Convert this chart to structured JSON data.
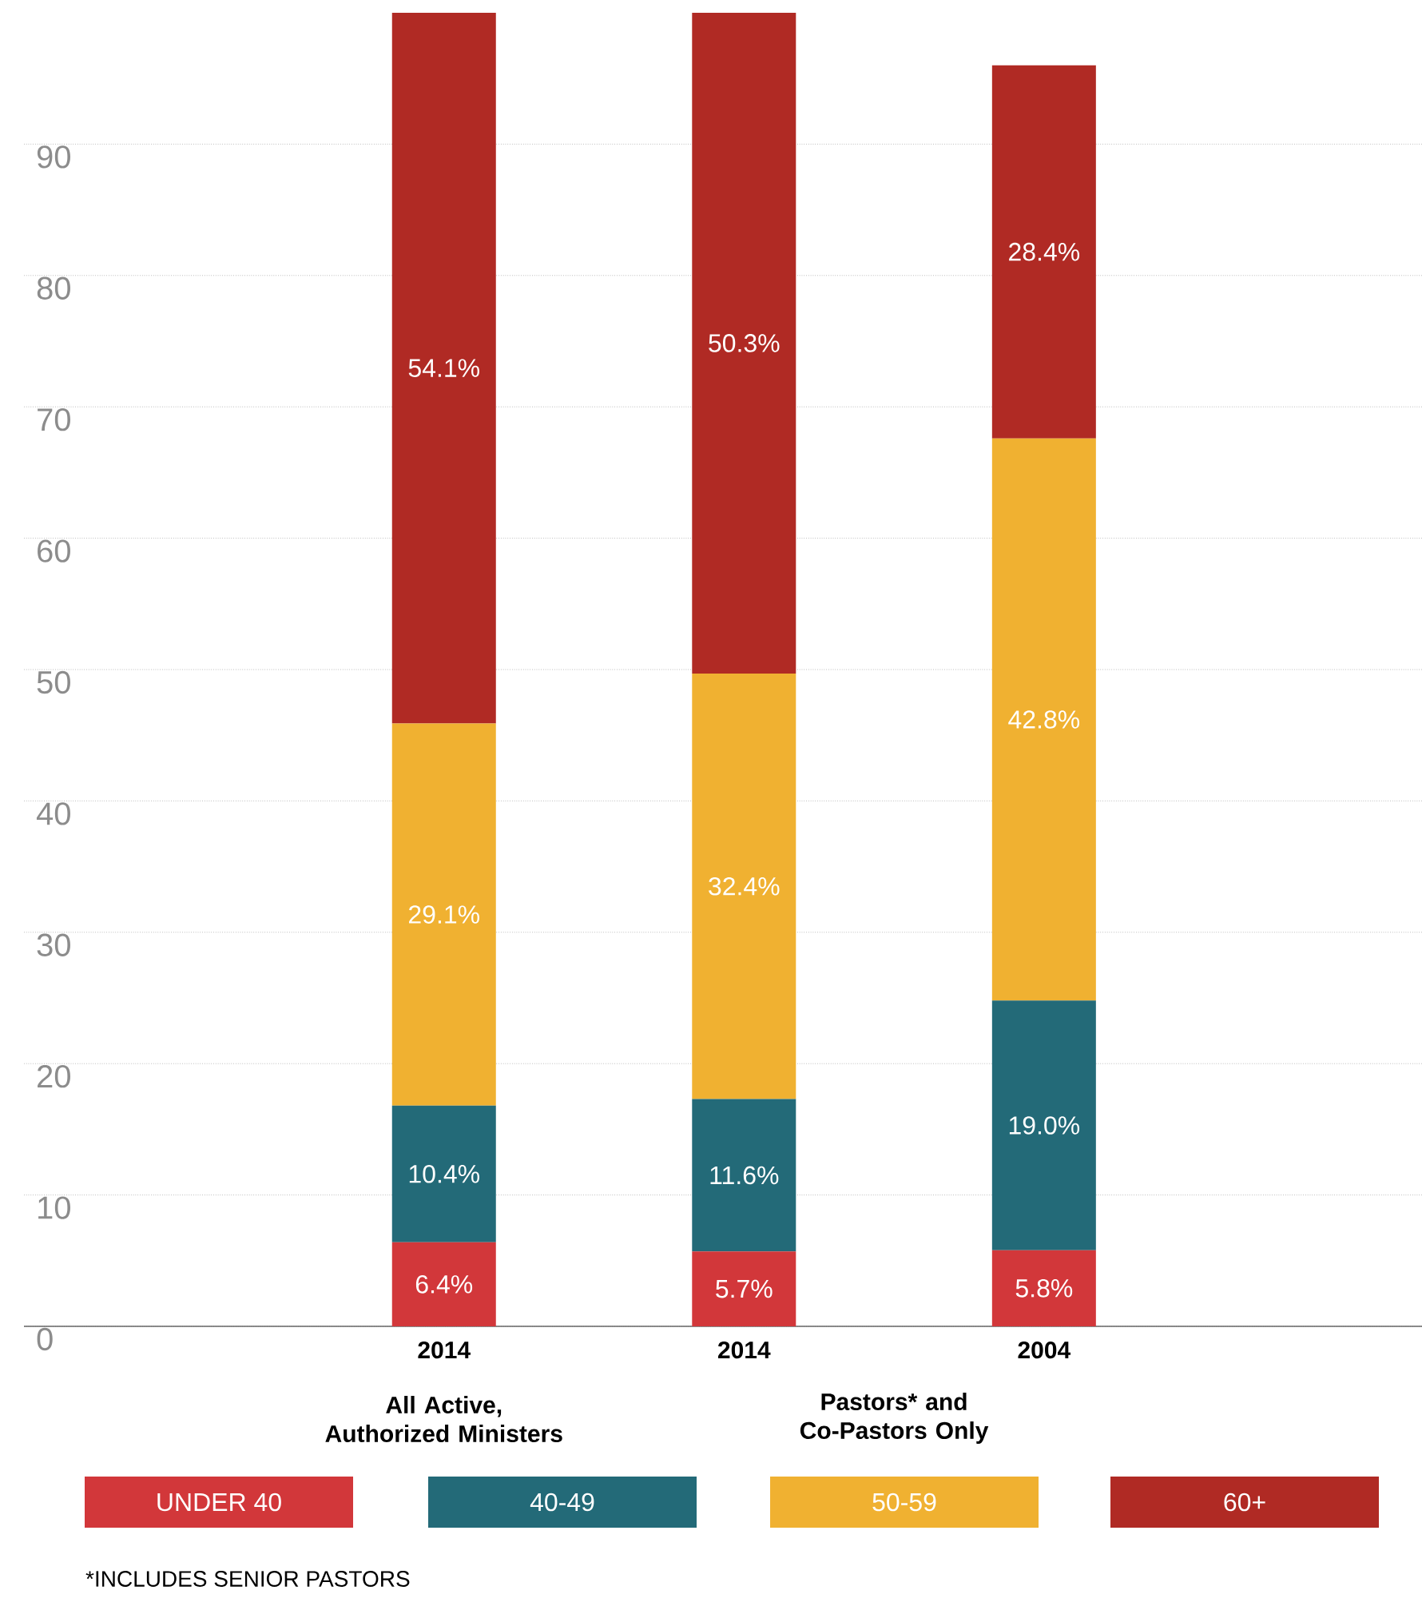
{
  "chart_data": {
    "type": "bar",
    "stacked": true,
    "categories": [
      "2014",
      "2014",
      "2004"
    ],
    "series": [
      {
        "name": "UNDER 40",
        "color": "#d2373a",
        "values": [
          6.4,
          5.7,
          5.8
        ],
        "value_labels": [
          "6.4%",
          "5.7%",
          "5.8%"
        ]
      },
      {
        "name": "40-49",
        "color": "#236a78",
        "values": [
          10.4,
          11.6,
          19.0
        ],
        "value_labels": [
          "10.4%",
          "11.6%",
          "19.0%"
        ]
      },
      {
        "name": "50-59",
        "color": "#f0b131",
        "values": [
          29.1,
          32.4,
          42.8
        ],
        "value_labels": [
          "29.1%",
          "32.4%",
          "42.8%"
        ]
      },
      {
        "name": "60+",
        "color": "#b02a24",
        "values": [
          54.1,
          50.3,
          28.4
        ],
        "value_labels": [
          "54.1%",
          "50.3%",
          "28.4%"
        ]
      }
    ],
    "ylim": [
      0,
      100
    ],
    "yticks": [
      0,
      10,
      20,
      30,
      40,
      50,
      60,
      70,
      80,
      90
    ],
    "grid": "y",
    "legend": "bottom",
    "annotations": [
      "All Active, Authorized Ministers",
      "Pastors* and Co-Pastors Only",
      "*INCLUDES SENIOR PASTORS"
    ]
  }
}
